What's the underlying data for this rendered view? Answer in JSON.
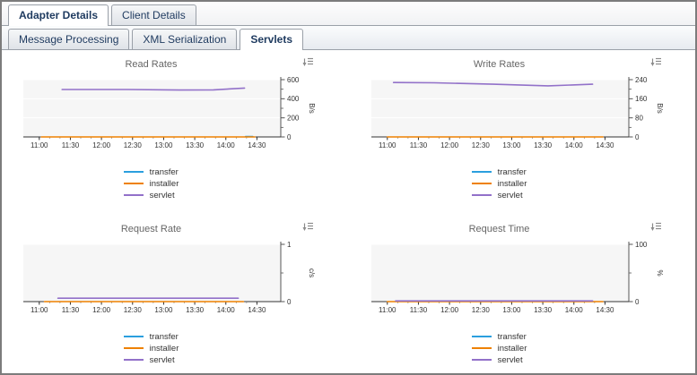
{
  "tabs": {
    "main": [
      {
        "label": "Adapter Details",
        "active": true
      },
      {
        "label": "Client Details",
        "active": false
      }
    ],
    "sub": [
      {
        "label": "Message Processing",
        "active": false
      },
      {
        "label": "XML Serialization",
        "active": false
      },
      {
        "label": "Servlets",
        "active": true
      }
    ]
  },
  "icons": {
    "chart_options": "chart-options-icon"
  },
  "colors": {
    "window_border": "#7c7c7c",
    "tab_text": "#1e3a5f",
    "plot_bg": "#f6f6f6",
    "grid": "#ffffff",
    "axis": "#555555",
    "x_axis": "#333333",
    "tick_text": "#333333",
    "title": "#666666",
    "transfer": "#2b9fde",
    "installer": "#ee8100",
    "servlet": "#9271c9"
  },
  "chart_data": [
    {
      "type": "line",
      "title": "Read Rates",
      "ylabel": "B/s",
      "ylim": [
        0,
        600
      ],
      "yticks": [
        0,
        200,
        400,
        600
      ],
      "x_ticks": [
        "11:00",
        "11:30",
        "12:00",
        "12:30",
        "13:00",
        "13:30",
        "14:00",
        "14:30"
      ],
      "x_tick_minutes": [
        660,
        690,
        720,
        750,
        780,
        810,
        840,
        870
      ],
      "x_domain": [
        655,
        893
      ],
      "grid": true,
      "legend_position": "bottom",
      "series": [
        {
          "name": "transfer",
          "color": "#2b9fde",
          "points": [
            [
              859,
              4
            ],
            [
              866,
              4
            ]
          ]
        },
        {
          "name": "installer",
          "color": "#ee8100",
          "points": [
            [
              662,
              0
            ],
            [
              868,
              0
            ]
          ]
        },
        {
          "name": "servlet",
          "color": "#9271c9",
          "points": [
            [
              682,
              497
            ],
            [
              745,
              497
            ],
            [
              795,
              491
            ],
            [
              828,
              493
            ],
            [
              858,
              512
            ]
          ]
        }
      ]
    },
    {
      "type": "line",
      "title": "Write Rates",
      "ylabel": "B/s",
      "ylim": [
        0,
        240
      ],
      "yticks": [
        0,
        80,
        160,
        240
      ],
      "x_ticks": [
        "11:00",
        "11:30",
        "12:00",
        "12:30",
        "13:00",
        "13:30",
        "14:00",
        "14:30"
      ],
      "x_tick_minutes": [
        660,
        690,
        720,
        750,
        780,
        810,
        840,
        870
      ],
      "x_domain": [
        655,
        893
      ],
      "grid": true,
      "legend_position": "bottom",
      "series": [
        {
          "name": "transfer",
          "color": "#2b9fde",
          "points": []
        },
        {
          "name": "installer",
          "color": "#ee8100",
          "points": [
            [
              660,
              0
            ],
            [
              868,
              0
            ]
          ]
        },
        {
          "name": "servlet",
          "color": "#9271c9",
          "points": [
            [
              666,
              228
            ],
            [
              705,
              227
            ],
            [
              762,
              221
            ],
            [
              815,
              214
            ],
            [
              858,
              221
            ]
          ]
        }
      ]
    },
    {
      "type": "line",
      "title": "Request Rate",
      "ylabel": "c/s",
      "ylim": [
        0,
        1
      ],
      "yticks": [
        0,
        1
      ],
      "x_ticks": [
        "11:00",
        "11:30",
        "12:00",
        "12:30",
        "13:00",
        "13:30",
        "14:00",
        "14:30"
      ],
      "x_tick_minutes": [
        660,
        690,
        720,
        750,
        780,
        810,
        840,
        870
      ],
      "x_domain": [
        655,
        893
      ],
      "grid": true,
      "legend_position": "bottom",
      "series": [
        {
          "name": "transfer",
          "color": "#2b9fde",
          "points": []
        },
        {
          "name": "installer",
          "color": "#ee8100",
          "points": [
            [
              665,
              0
            ],
            [
              857,
              0
            ]
          ]
        },
        {
          "name": "servlet",
          "color": "#9271c9",
          "points": [
            [
              678,
              0.06
            ],
            [
              852,
              0.06
            ]
          ]
        }
      ]
    },
    {
      "type": "line",
      "title": "Request Time",
      "ylabel": "%",
      "ylim": [
        0,
        100
      ],
      "yticks": [
        0,
        100
      ],
      "x_ticks": [
        "11:00",
        "11:30",
        "12:00",
        "12:30",
        "13:00",
        "13:30",
        "14:00",
        "14:30"
      ],
      "x_tick_minutes": [
        660,
        690,
        720,
        750,
        780,
        810,
        840,
        870
      ],
      "x_domain": [
        655,
        893
      ],
      "grid": true,
      "legend_position": "bottom",
      "series": [
        {
          "name": "transfer",
          "color": "#2b9fde",
          "points": []
        },
        {
          "name": "installer",
          "color": "#ee8100",
          "points": [
            [
              660,
              0
            ],
            [
              868,
              0
            ]
          ]
        },
        {
          "name": "servlet",
          "color": "#9271c9",
          "points": [
            [
              668,
              1.2
            ],
            [
              858,
              1.2
            ]
          ]
        }
      ]
    }
  ]
}
